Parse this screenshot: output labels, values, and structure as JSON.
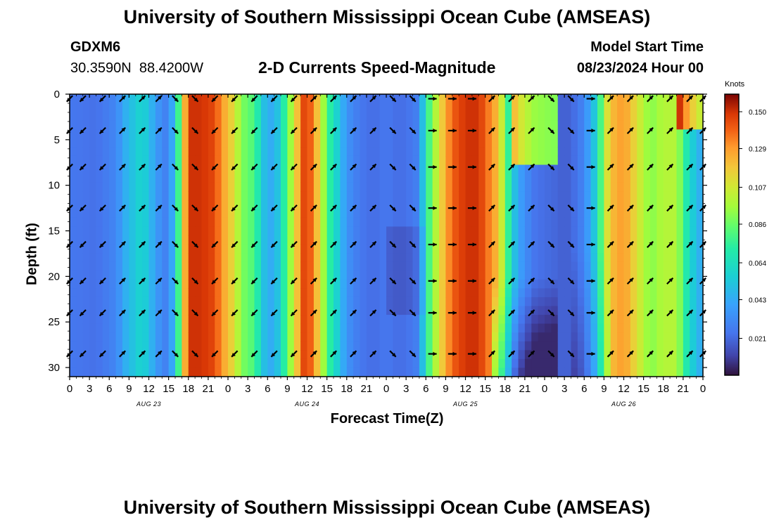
{
  "header": {
    "title": "University of Southern Mississippi Ocean Cube (AMSEAS)",
    "station_id": "GDXM6",
    "station_coords": "30.3590N  88.4200W",
    "plot_title": "2-D Currents Speed-Magnitude",
    "start_label": "Model Start Time",
    "start_value": "08/23/2024 Hour 00"
  },
  "footer": {
    "title": "University of Southern Mississippi Ocean Cube (AMSEAS)"
  },
  "colorbar": {
    "title": "Knots",
    "ticks": [
      "0.021",
      "0.043",
      "0.064",
      "0.086",
      "0.107",
      "0.129",
      "0.150"
    ]
  },
  "chart_data": {
    "type": "heatmap",
    "title": "2-D Currents Speed-Magnitude",
    "xlabel": "Forecast Time(Z)",
    "ylabel": "Depth (ft)",
    "xlim": [
      0,
      96
    ],
    "ylim": [
      31,
      0
    ],
    "x_tick_labels": [
      "0",
      "3",
      "6",
      "9",
      "12",
      "15",
      "18",
      "21",
      "0",
      "3",
      "6",
      "9",
      "12",
      "15",
      "18",
      "21",
      "0",
      "3",
      "6",
      "9",
      "12",
      "15",
      "18",
      "21",
      "0",
      "3",
      "6",
      "9",
      "12",
      "15",
      "18",
      "21",
      "0"
    ],
    "y_tick_labels": [
      "0",
      "5",
      "10",
      "15",
      "20",
      "25",
      "30"
    ],
    "date_labels": [
      {
        "hour": 12,
        "label": "AUG 23"
      },
      {
        "hour": 36,
        "label": "AUG 24"
      },
      {
        "hour": 60,
        "label": "AUG 25"
      },
      {
        "hour": 84,
        "label": "AUG 26"
      }
    ],
    "colorbar_range": [
      0.0,
      0.16
    ],
    "colorbar_unit": "Knots",
    "speed_profile_hours": [
      0,
      4,
      7,
      8.5,
      11,
      14,
      15,
      16,
      17,
      18,
      20,
      22,
      23,
      25,
      26,
      28,
      30,
      32,
      33,
      34,
      35,
      36,
      38,
      39,
      40,
      42,
      44,
      46,
      48,
      50,
      52,
      53,
      54,
      56,
      58,
      60,
      62,
      65,
      66,
      67,
      68,
      69,
      70,
      72,
      74,
      75,
      76,
      78,
      80,
      81,
      82,
      84,
      86,
      88,
      90,
      92,
      94,
      96
    ],
    "speed_profile_knots": [
      0.025,
      0.023,
      0.03,
      0.045,
      0.06,
      0.03,
      0.028,
      0.055,
      0.1,
      0.15,
      0.15,
      0.145,
      0.13,
      0.11,
      0.09,
      0.08,
      0.04,
      0.055,
      0.09,
      0.1,
      0.14,
      0.15,
      0.11,
      0.08,
      0.065,
      0.035,
      0.025,
      0.022,
      0.025,
      0.022,
      0.025,
      0.03,
      0.07,
      0.11,
      0.14,
      0.15,
      0.15,
      0.12,
      0.09,
      0.06,
      0.04,
      0.035,
      0.025,
      0.022,
      0.02,
      0.018,
      0.02,
      0.03,
      0.06,
      0.1,
      0.12,
      0.13,
      0.11,
      0.09,
      0.1,
      0.1,
      0.06,
      0.04
    ],
    "arrow_depths_ft": [
      0.5,
      4,
      8,
      12.5,
      16.5,
      20.5,
      24,
      28.5
    ],
    "arrow_hours": [
      0,
      2,
      5,
      8,
      11,
      13.5,
      16,
      19,
      22,
      25,
      28,
      31,
      34,
      37,
      40,
      43,
      46,
      49,
      52,
      55,
      58,
      61,
      64,
      67,
      70,
      73,
      76,
      79,
      82,
      85,
      88,
      91,
      94,
      96
    ],
    "arrow_direction_deg_by_hour": [
      225,
      225,
      225,
      45,
      45,
      45,
      135,
      135,
      225,
      225,
      225,
      225,
      225,
      45,
      45,
      45,
      45,
      135,
      135,
      90,
      90,
      90,
      45,
      45,
      45,
      135,
      135,
      90,
      45,
      45,
      45,
      45,
      45,
      45
    ]
  }
}
